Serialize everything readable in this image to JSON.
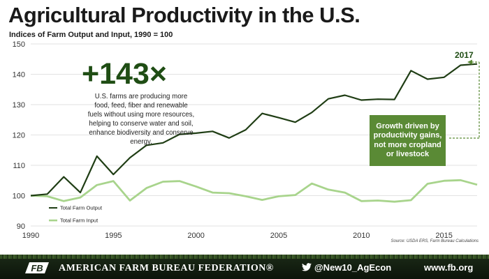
{
  "title": "Agricultural Productivity in the U.S.",
  "subtitle": "Indices of Farm Output and Input, 1990 = 100",
  "annotation": {
    "headline": "+143×",
    "body": "U.S. farms are producing more food, feed, fiber and renewable fuels without using more resources, helping to conserve water and soil, enhance biodiversity and conserve energy.",
    "end_year": "2017",
    "callout": "Growth driven by productivity gains, not more cropland or livestock"
  },
  "source": "Source: USDA ERS, Farm Bureau Calculations",
  "footer": {
    "org": "AMERICAN FARM BUREAU FEDERATION®",
    "twitter": "@New10_AgEcon",
    "website": "www.fb.org",
    "logo_text": "FB"
  },
  "colors": {
    "output": "#1f3d14",
    "input": "#a8d48c",
    "accent": "#5a8a35",
    "title": "#1a1a1a"
  },
  "chart_data": {
    "type": "line",
    "title": "Agricultural Productivity in the U.S.",
    "xlabel": "",
    "ylabel": "",
    "xlim": [
      1990,
      2017
    ],
    "ylim": [
      90,
      150
    ],
    "x_ticks": [
      1990,
      1995,
      2000,
      2005,
      2010,
      2015
    ],
    "y_ticks": [
      90,
      100,
      110,
      120,
      130,
      140,
      150
    ],
    "grid": "horizontal",
    "legend": "bottom-left",
    "x": [
      1990,
      1991,
      1992,
      1993,
      1994,
      1995,
      1996,
      1997,
      1998,
      1999,
      2000,
      2001,
      2002,
      2003,
      2004,
      2005,
      2006,
      2007,
      2008,
      2009,
      2010,
      2011,
      2012,
      2013,
      2014,
      2015,
      2016,
      2017
    ],
    "series": [
      {
        "name": "Total Farm Output",
        "color": "#1f3d14",
        "values": [
          100,
          100.5,
          106.2,
          101,
          113,
          107,
          112.5,
          116.6,
          117.4,
          120.2,
          120.6,
          121.2,
          119,
          121.7,
          127.1,
          125.7,
          124.2,
          127.4,
          131.9,
          133.1,
          131.5,
          131.8,
          131.7,
          141.2,
          138.4,
          139,
          143,
          143.4
        ]
      },
      {
        "name": "Total Farm Input",
        "color": "#a8d48c",
        "values": [
          100,
          99.8,
          98.2,
          99.4,
          103.5,
          104.8,
          98.4,
          102.5,
          104.6,
          104.8,
          103,
          101,
          100.8,
          99.8,
          98.6,
          99.8,
          100.2,
          104,
          102,
          101,
          98.2,
          98.4,
          98,
          98.5,
          103.9,
          104.9,
          105.1,
          103.6
        ]
      }
    ]
  }
}
